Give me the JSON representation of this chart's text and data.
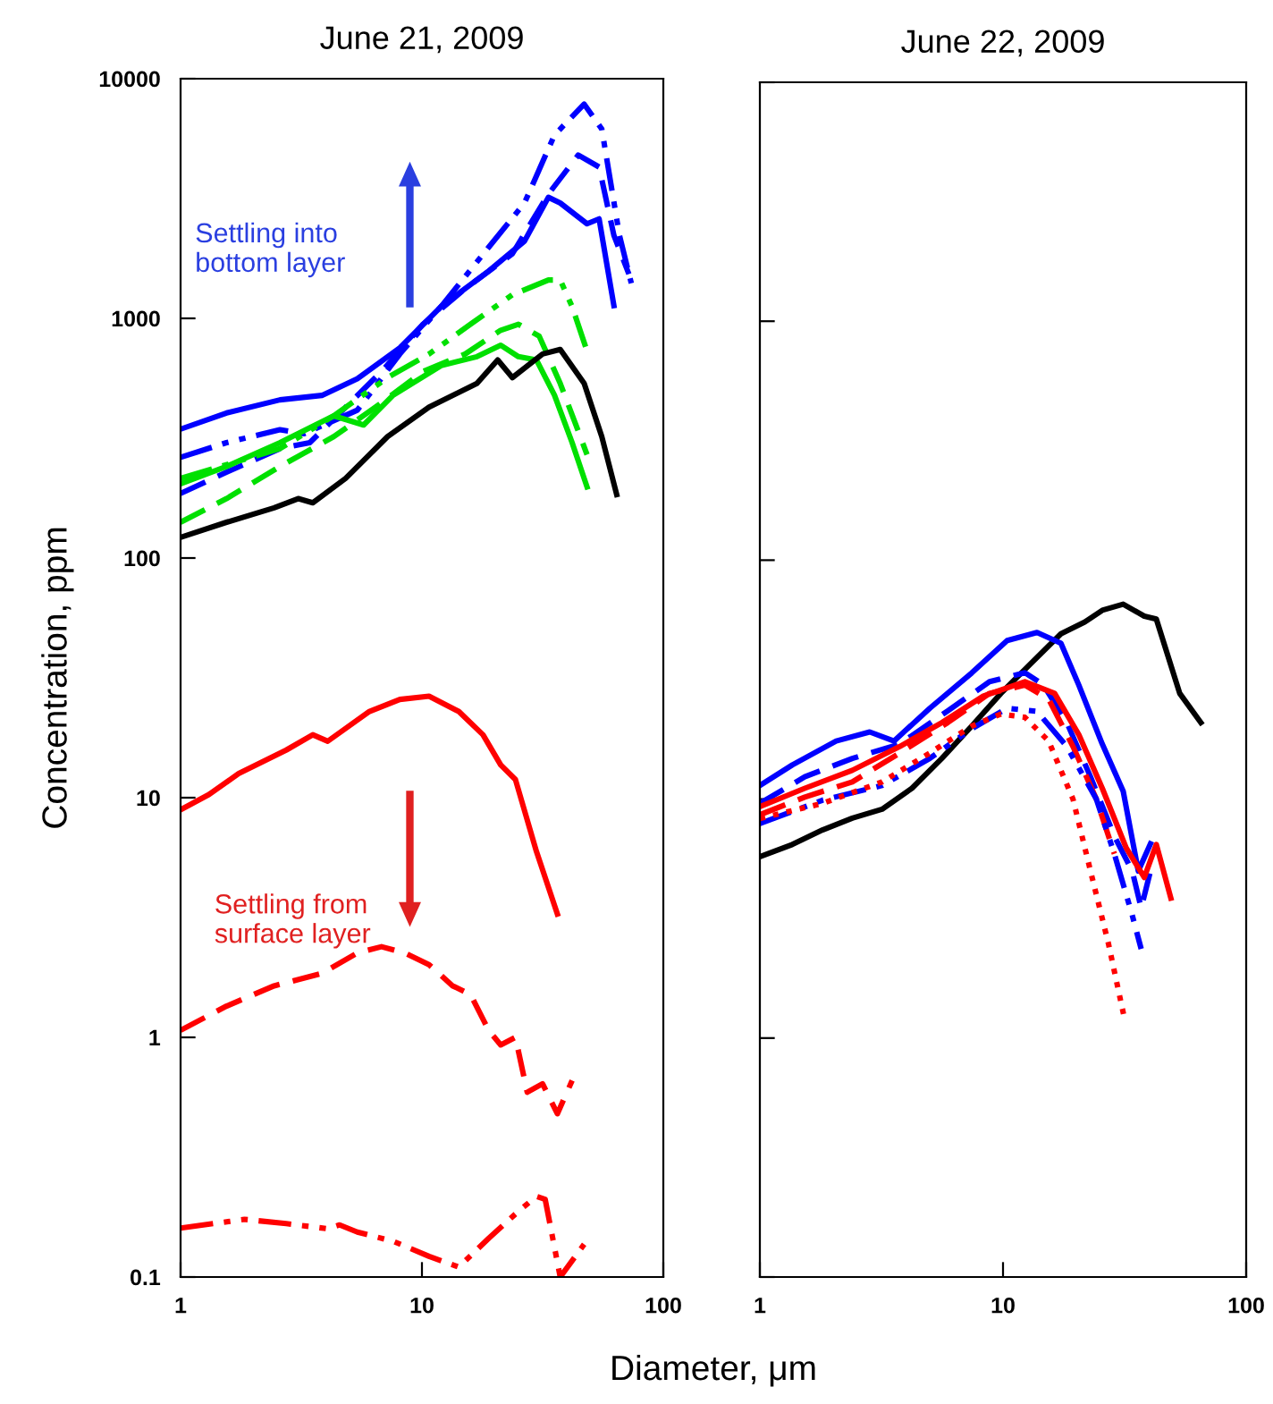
{
  "chart_data": [
    {
      "type": "line",
      "title": "June 21, 2009",
      "xlabel": "Diameter, μm",
      "ylabel": "Concentration, ppm",
      "log": "xy",
      "grid": false,
      "xlim": [
        1,
        100
      ],
      "xticks": [
        1,
        10,
        100
      ],
      "ylim": [
        0.1,
        10000
      ],
      "yticks": [
        0.1,
        1,
        10,
        100,
        1000,
        10000
      ],
      "annotations": [
        "Settling into\nbottom layer",
        "Settling from\nsurface layer"
      ],
      "series": [
        {
          "color": "#0000ff",
          "line_style": "solid",
          "x": [
            1,
            1.55,
            2.58,
            3.85,
            5.4,
            8.1,
            12,
            18.9,
            26.6,
            33.4,
            37.4,
            48.3,
            54.2,
            62.4
          ],
          "values": [
            345,
            403,
            457,
            477,
            560,
            753,
            1120,
            1575,
            2100,
            3200,
            3030,
            2480,
            2600,
            1130
          ]
        },
        {
          "color": "#0000ff",
          "line_style": "dashdot",
          "x": [
            1,
            1.55,
            2.58,
            3.25,
            5.4,
            8.1,
            12,
            18.9,
            26.6,
            35.4,
            47,
            55.6,
            65.8,
            73.7
          ],
          "values": [
            263,
            303,
            343,
            330,
            414,
            710,
            1120,
            1980,
            3030,
            5820,
            7830,
            6170,
            2220,
            1400
          ]
        },
        {
          "color": "#0000ff",
          "line_style": "dashed",
          "x": [
            1,
            1.55,
            2.58,
            3.43,
            4.83,
            6.8,
            10.1,
            15.1,
            23.7,
            33.4,
            44.4,
            54.2,
            62.4,
            72
          ],
          "values": [
            186,
            228,
            286,
            303,
            426,
            600,
            945,
            1330,
            1860,
            3300,
            4800,
            4280,
            2220,
            1530
          ]
        },
        {
          "color": "#00e000",
          "line_style": "solid",
          "x": [
            1,
            1.55,
            2.58,
            4.31,
            5.73,
            7.6,
            12,
            16.9,
            21.2,
            25.1,
            29.8,
            35.4,
            41.9,
            48.3
          ],
          "values": [
            204,
            241,
            303,
            392,
            359,
            478,
            635,
            692,
            773,
            692,
            671,
            478,
            303,
            198
          ]
        },
        {
          "color": "#00e000",
          "line_style": "dashed",
          "x": [
            1,
            1.55,
            2.58,
            4.31,
            6.42,
            10.1,
            15.1,
            21.2,
            25.1,
            30.6,
            37.4,
            44.4,
            48.3
          ],
          "values": [
            141,
            177,
            241,
            321,
            426,
            600,
            710,
            892,
            945,
            843,
            535,
            339,
            270
          ]
        },
        {
          "color": "#00e000",
          "line_style": "dashdot",
          "x": [
            1,
            2.58,
            4.31,
            7.2,
            10.7,
            15.9,
            23.7,
            33.4,
            37.4,
            41.9,
            48.3
          ],
          "values": [
            215,
            286,
            392,
            566,
            710,
            945,
            1255,
            1445,
            1445,
            1120,
            731
          ]
        },
        {
          "color": "#000000",
          "line_style": "solid",
          "x": [
            1,
            1.55,
            2.44,
            3.07,
            3.53,
            4.83,
            7.2,
            10.7,
            16.9,
            20.6,
            23.7,
            31.6,
            37.4,
            47,
            55.6,
            64.1
          ],
          "values": [
            122,
            141,
            162,
            177,
            170,
            215,
            321,
            426,
            535,
            671,
            566,
            710,
            742,
            535,
            321,
            184
          ]
        },
        {
          "color": "#ff0000",
          "line_style": "solid",
          "x": [
            1,
            1.31,
            1.74,
            2.74,
            3.53,
            4.07,
            6.06,
            8.1,
            10.7,
            14.2,
            17.9,
            21.2,
            24.4,
            29.8,
            36.4
          ],
          "values": [
            8.9,
            10.3,
            12.6,
            15.8,
            18.3,
            17.2,
            22.9,
            25.7,
            26.5,
            22.9,
            18.3,
            13.7,
            11.9,
            5.97,
            3.27
          ]
        },
        {
          "color": "#ff0000",
          "line_style": "dashed",
          "x": [
            1,
            1.55,
            2.44,
            3.85,
            5.4,
            6.8,
            8.5,
            10.7,
            13.4,
            15.9,
            18.9,
            21.2,
            24.4,
            27.3,
            31.6,
            36.4,
            41.9
          ],
          "values": [
            1.07,
            1.35,
            1.64,
            1.85,
            2.25,
            2.39,
            2.25,
            2.01,
            1.64,
            1.51,
            1.07,
            0.93,
            1.0,
            0.59,
            0.64,
            0.48,
            0.66
          ]
        },
        {
          "color": "#ff0000",
          "line_style": "dashdot",
          "x": [
            1,
            1.84,
            2.74,
            4.07,
            4.56,
            5.4,
            7.6,
            10.7,
            14.2,
            18.9,
            25.1,
            29.8,
            32.4,
            37.4,
            47
          ],
          "values": [
            0.16,
            0.174,
            0.167,
            0.159,
            0.165,
            0.154,
            0.141,
            0.122,
            0.11,
            0.145,
            0.188,
            0.217,
            0.211,
            0.1,
            0.137
          ]
        }
      ]
    },
    {
      "type": "line",
      "title": "June 22, 2009",
      "log": "xy",
      "grid": false,
      "tick_labels": "x",
      "xlim": [
        1,
        100
      ],
      "xticks": [
        1,
        10,
        100
      ],
      "ylim": [
        0.1,
        10000
      ],
      "yticks": [
        {
          "value": 0.1,
          "label": null
        },
        {
          "value": 1,
          "label": null
        },
        {
          "value": 10,
          "label": null
        },
        {
          "value": 100,
          "label": null
        },
        {
          "value": 1000,
          "label": null
        },
        {
          "value": 10000,
          "label": null
        }
      ],
      "series": [
        {
          "color": "#000000",
          "line_style": "solid",
          "x": [
            1,
            1.36,
            1.81,
            2.4,
            3.18,
            4.22,
            5.6,
            7.43,
            9.8,
            13.0,
            17.3,
            21.7,
            25.6,
            31.2,
            38.1,
            42.7,
            53.3,
            65.1
          ],
          "values": [
            5.74,
            6.46,
            7.43,
            8.32,
            9.07,
            11.1,
            14.8,
            20.2,
            27.7,
            36.9,
            49.2,
            55.1,
            61.7,
            65.4,
            58.3,
            56.7,
            27.7,
            20.9
          ]
        },
        {
          "color": "#0000ff",
          "line_style": "solid",
          "x": [
            1,
            1.36,
            2.06,
            2.83,
            3.56,
            5.0,
            7.43,
            10.4,
            13.8,
            17.3,
            20.5,
            25.6,
            31.2,
            36.0,
            40.4
          ],
          "values": [
            11.4,
            13.9,
            17.5,
            19.1,
            17.5,
            24,
            33.7,
            46.1,
            49.8,
            44.9,
            30,
            17,
            10.8,
            5.0,
            6.5
          ]
        },
        {
          "color": "#0000ff",
          "line_style": "dashed",
          "x": [
            1,
            1.53,
            2.4,
            3.76,
            5.92,
            8.8,
            12.3,
            14.6,
            18.3,
            22.9,
            28.7,
            34.0,
            37.0,
            40.4
          ],
          "values": [
            9.6,
            12.4,
            14.8,
            17.0,
            23.4,
            31,
            33.8,
            30.2,
            20.9,
            12.4,
            7.0,
            5.0,
            3.5,
            5.0
          ]
        },
        {
          "color": "#ff0000",
          "line_style": "solid",
          "x": [
            1,
            1.53,
            2.4,
            3.76,
            5.6,
            8.3,
            12.3,
            16.3,
            20.5,
            25.6,
            32.1,
            38.1,
            42.7,
            49.0
          ],
          "values": [
            9.3,
            11.1,
            13.2,
            16.6,
            20.9,
            27,
            31,
            27.7,
            18.6,
            11.1,
            6.25,
            4.7,
            6.46,
            3.85
          ]
        },
        {
          "color": "#ff0000",
          "line_style": "dashed",
          "x": [
            1,
            1.53,
            2.4,
            3.76,
            5.92,
            8.8,
            12.3,
            15.4,
            19.4,
            24.2,
            28.7
          ],
          "values": [
            8.6,
            10.2,
            11.8,
            15.6,
            20.9,
            27.7,
            30,
            26.2,
            16.6,
            10,
            5.9
          ]
        },
        {
          "color": "#0000ff",
          "line_style": "dashdot",
          "x": [
            1,
            1.81,
            3.18,
            5.0,
            7.43,
            10.4,
            13.8,
            18.3,
            24.2,
            28.7,
            33.9,
            37.0
          ],
          "values": [
            7.9,
            9.9,
            11.4,
            14.8,
            19.7,
            24,
            23.3,
            16.6,
            10,
            5.9,
            3.3,
            2.36
          ]
        },
        {
          "color": "#ff0000",
          "line_style": "dotted",
          "x": [
            1,
            1.81,
            3.18,
            5.0,
            7.43,
            9.8,
            12.3,
            15.4,
            19.4,
            22.9,
            27.1,
            31.3
          ],
          "values": [
            8.3,
            9.6,
            11.8,
            15.6,
            20.2,
            22.7,
            22,
            17.5,
            10,
            5.0,
            2.5,
            1.26
          ]
        }
      ]
    }
  ]
}
